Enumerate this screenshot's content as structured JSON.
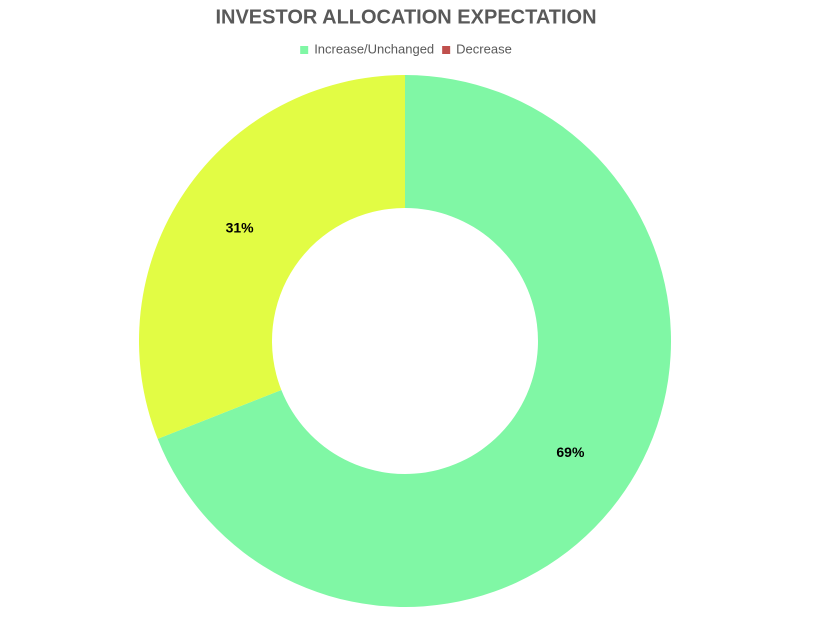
{
  "chart_data": {
    "type": "donut",
    "title": "INVESTOR ALLOCATION EXPECTATION",
    "categories": [
      "Increase/Unchanged",
      "Decrease"
    ],
    "values": [
      69,
      31
    ],
    "value_labels": [
      "69%",
      "31%"
    ],
    "colors": [
      "#80f7a5",
      "#e2fc44"
    ],
    "legend_colors": [
      "#80f7a5",
      "#c0504d"
    ],
    "legend": "top"
  }
}
